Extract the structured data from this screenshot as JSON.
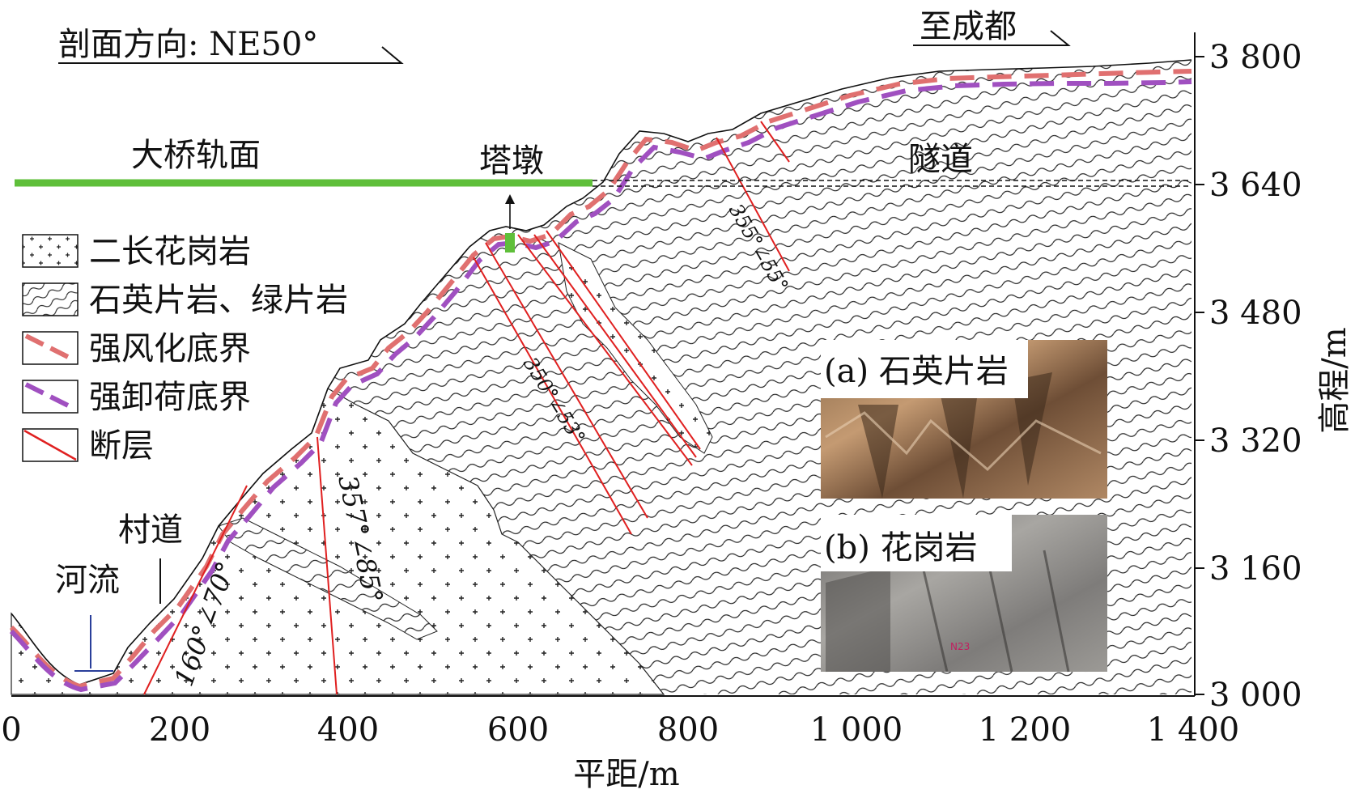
{
  "header": {
    "section_direction": "剖面方向: NE50°",
    "to_chengdu": "至成都"
  },
  "labels": {
    "bridge_deck": "大桥轨面",
    "tower_pier": "塔墩",
    "tunnel": "隧道",
    "village_road": "村道",
    "river": "河流"
  },
  "legend": {
    "items": [
      {
        "key": "granite",
        "label": "二长花岗岩"
      },
      {
        "key": "schist",
        "label": "石英片岩、绿片岩"
      },
      {
        "key": "weathering",
        "label": "强风化底界",
        "color": "#e07070"
      },
      {
        "key": "unloading",
        "label": "强卸荷底界",
        "color": "#a050c0"
      },
      {
        "key": "fault",
        "label": "断层",
        "color": "#e02020"
      }
    ]
  },
  "faults": {
    "f1": "160°∠70°",
    "f2": "357°∠85°",
    "f3": "350°∠53°",
    "f4": "355°∠55°"
  },
  "photos": {
    "a_label": "(a) 石英片岩",
    "b_label": "(b) 花岗岩",
    "b_mark": "N23"
  },
  "axes": {
    "xlabel": "平距/m",
    "ylabel": "高程/m",
    "x_ticks": [
      "0",
      "200",
      "400",
      "600",
      "800",
      "1 000",
      "1 200",
      "1 400"
    ],
    "y_ticks": [
      "3 000",
      "3 160",
      "3 320",
      "3 480",
      "3 640",
      "3 800"
    ]
  },
  "colors": {
    "bridge": "#5fbf3a",
    "fault": "#e02020",
    "weathering": "#e07070",
    "unloading": "#a050c0",
    "river_line": "#2a3f9a"
  }
}
